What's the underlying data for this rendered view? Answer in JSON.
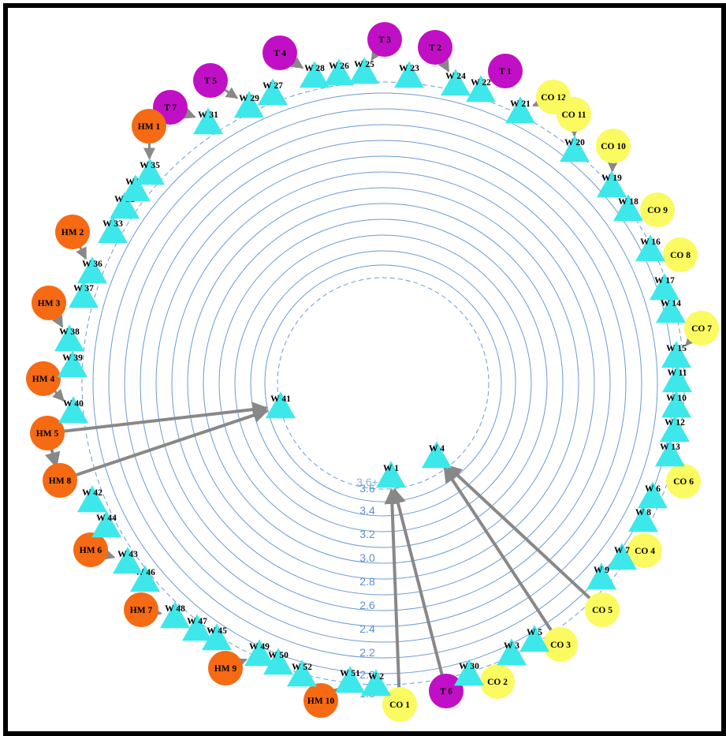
{
  "colors": {
    "ring": "#6b9bd1",
    "edge": "#888888",
    "warehouse": "#3ee8ea",
    "hm": "#f56a12",
    "t": "#c10fc5",
    "co": "#fbfa60",
    "label": "#000000"
  },
  "rings": {
    "labels": [
      "3.6",
      "3.4",
      "3.2",
      "3.0",
      "2.8",
      "2.6",
      "2.4",
      "2.2",
      "2.0",
      "1.8"
    ],
    "partial_labels": [
      "3.6+",
      "2.0",
      "1.8"
    ]
  },
  "nodes": [
    {
      "id": "T3",
      "label": "T 3",
      "type": "t",
      "shape": "circle"
    },
    {
      "id": "T2",
      "label": "T 2",
      "type": "t",
      "shape": "circle"
    },
    {
      "id": "T4",
      "label": "T 4",
      "type": "t",
      "shape": "circle"
    },
    {
      "id": "T1",
      "label": "T 1",
      "type": "t",
      "shape": "circle"
    },
    {
      "id": "T5",
      "label": "T 5",
      "type": "t",
      "shape": "circle"
    },
    {
      "id": "T7",
      "label": "T 7",
      "type": "t",
      "shape": "circle"
    },
    {
      "id": "T6",
      "label": "T 6",
      "type": "t",
      "shape": "circle"
    },
    {
      "id": "HM1",
      "label": "HM 1",
      "type": "hm",
      "shape": "circle"
    },
    {
      "id": "HM2",
      "label": "HM 2",
      "type": "hm",
      "shape": "circle"
    },
    {
      "id": "HM3",
      "label": "HM 3",
      "type": "hm",
      "shape": "circle"
    },
    {
      "id": "HM4",
      "label": "HM 4",
      "type": "hm",
      "shape": "circle"
    },
    {
      "id": "HM5",
      "label": "HM 5",
      "type": "hm",
      "shape": "circle"
    },
    {
      "id": "HM8",
      "label": "HM 8",
      "type": "hm",
      "shape": "circle"
    },
    {
      "id": "HM6",
      "label": "HM 6",
      "type": "hm",
      "shape": "circle"
    },
    {
      "id": "HM7",
      "label": "HM 7",
      "type": "hm",
      "shape": "circle"
    },
    {
      "id": "HM9",
      "label": "HM 9",
      "type": "hm",
      "shape": "circle"
    },
    {
      "id": "HM10",
      "label": "HM 10",
      "type": "hm",
      "shape": "circle"
    },
    {
      "id": "CO12",
      "label": "CO 12",
      "type": "co",
      "shape": "circle"
    },
    {
      "id": "CO11",
      "label": "CO 11",
      "type": "co",
      "shape": "circle"
    },
    {
      "id": "CO10",
      "label": "CO 10",
      "type": "co",
      "shape": "circle"
    },
    {
      "id": "CO9",
      "label": "CO 9",
      "type": "co",
      "shape": "circle"
    },
    {
      "id": "CO8",
      "label": "CO 8",
      "type": "co",
      "shape": "circle"
    },
    {
      "id": "CO7",
      "label": "CO 7",
      "type": "co",
      "shape": "circle"
    },
    {
      "id": "CO6",
      "label": "CO 6",
      "type": "co",
      "shape": "circle"
    },
    {
      "id": "CO4",
      "label": "CO 4",
      "type": "co",
      "shape": "circle"
    },
    {
      "id": "CO5",
      "label": "CO 5",
      "type": "co",
      "shape": "circle"
    },
    {
      "id": "CO3",
      "label": "CO 3",
      "type": "co",
      "shape": "circle"
    },
    {
      "id": "CO2",
      "label": "CO 2",
      "type": "co",
      "shape": "circle"
    },
    {
      "id": "CO1",
      "label": "CO 1",
      "type": "co",
      "shape": "circle"
    },
    {
      "id": "W26",
      "label": "W 26",
      "type": "w",
      "shape": "triangle"
    },
    {
      "id": "W28",
      "label": "W 28",
      "type": "w",
      "shape": "triangle"
    },
    {
      "id": "W25",
      "label": "W 25",
      "type": "w",
      "shape": "triangle"
    },
    {
      "id": "W23",
      "label": "W 23",
      "type": "w",
      "shape": "triangle"
    },
    {
      "id": "W24",
      "label": "W 24",
      "type": "w",
      "shape": "triangle"
    },
    {
      "id": "W22",
      "label": "W 22",
      "type": "w",
      "shape": "triangle"
    },
    {
      "id": "W27",
      "label": "W 27",
      "type": "w",
      "shape": "triangle"
    },
    {
      "id": "W29",
      "label": "W 29",
      "type": "w",
      "shape": "triangle"
    },
    {
      "id": "W31",
      "label": "W 31",
      "type": "w",
      "shape": "triangle"
    },
    {
      "id": "W21",
      "label": "W 21",
      "type": "w",
      "shape": "triangle"
    },
    {
      "id": "W20",
      "label": "W 20",
      "type": "w",
      "shape": "triangle"
    },
    {
      "id": "W19",
      "label": "W 19",
      "type": "w",
      "shape": "triangle"
    },
    {
      "id": "W18",
      "label": "W 18",
      "type": "w",
      "shape": "triangle"
    },
    {
      "id": "W16",
      "label": "W 16",
      "type": "w",
      "shape": "triangle"
    },
    {
      "id": "W17",
      "label": "W 17",
      "type": "w",
      "shape": "triangle"
    },
    {
      "id": "W14",
      "label": "W 14",
      "type": "w",
      "shape": "triangle"
    },
    {
      "id": "W15",
      "label": "W 15",
      "type": "w",
      "shape": "triangle"
    },
    {
      "id": "W11",
      "label": "W 11",
      "type": "w",
      "shape": "triangle"
    },
    {
      "id": "W10",
      "label": "W 10",
      "type": "w",
      "shape": "triangle"
    },
    {
      "id": "W12",
      "label": "W 12",
      "type": "w",
      "shape": "triangle"
    },
    {
      "id": "W13",
      "label": "W 13",
      "type": "w",
      "shape": "triangle"
    },
    {
      "id": "W6",
      "label": "W 6",
      "type": "w",
      "shape": "triangle"
    },
    {
      "id": "W8",
      "label": "W 8",
      "type": "w",
      "shape": "triangle"
    },
    {
      "id": "W7",
      "label": "W 7",
      "type": "w",
      "shape": "triangle"
    },
    {
      "id": "W9",
      "label": "W 9",
      "type": "w",
      "shape": "triangle"
    },
    {
      "id": "W5",
      "label": "W 5",
      "type": "w",
      "shape": "triangle"
    },
    {
      "id": "W3",
      "label": "W 3",
      "type": "w",
      "shape": "triangle"
    },
    {
      "id": "W30",
      "label": "W 30",
      "type": "w",
      "shape": "triangle"
    },
    {
      "id": "W2",
      "label": "W 2",
      "type": "w",
      "shape": "triangle"
    },
    {
      "id": "W51",
      "label": "W 51",
      "type": "w",
      "shape": "triangle"
    },
    {
      "id": "W52",
      "label": "W 52",
      "type": "w",
      "shape": "triangle"
    },
    {
      "id": "W50",
      "label": "W 50",
      "type": "w",
      "shape": "triangle"
    },
    {
      "id": "W49",
      "label": "W 49",
      "type": "w",
      "shape": "triangle"
    },
    {
      "id": "W45",
      "label": "W 45",
      "type": "w",
      "shape": "triangle"
    },
    {
      "id": "W47",
      "label": "W 47",
      "type": "w",
      "shape": "triangle"
    },
    {
      "id": "W48",
      "label": "W 48",
      "type": "w",
      "shape": "triangle"
    },
    {
      "id": "W46",
      "label": "W 46",
      "type": "w",
      "shape": "triangle"
    },
    {
      "id": "W43",
      "label": "W 43",
      "type": "w",
      "shape": "triangle"
    },
    {
      "id": "W44",
      "label": "W 44",
      "type": "w",
      "shape": "triangle"
    },
    {
      "id": "W42",
      "label": "W 42",
      "type": "w",
      "shape": "triangle"
    },
    {
      "id": "W40",
      "label": "W 40",
      "type": "w",
      "shape": "triangle"
    },
    {
      "id": "W39",
      "label": "W 39",
      "type": "w",
      "shape": "triangle"
    },
    {
      "id": "W38",
      "label": "W 38",
      "type": "w",
      "shape": "triangle"
    },
    {
      "id": "W37",
      "label": "W 37",
      "type": "w",
      "shape": "triangle"
    },
    {
      "id": "W36",
      "label": "W 36",
      "type": "w",
      "shape": "triangle"
    },
    {
      "id": "W33",
      "label": "W 33",
      "type": "w",
      "shape": "triangle"
    },
    {
      "id": "W32",
      "label": "W 32",
      "type": "w",
      "shape": "triangle"
    },
    {
      "id": "W34",
      "label": "W 34",
      "type": "w",
      "shape": "triangle"
    },
    {
      "id": "W35",
      "label": "W 35",
      "type": "w",
      "shape": "triangle"
    },
    {
      "id": "W41",
      "label": "W 41",
      "type": "w",
      "shape": "triangle"
    },
    {
      "id": "W1",
      "label": "W 1",
      "type": "w",
      "shape": "triangle"
    },
    {
      "id": "W4",
      "label": "W 4",
      "type": "w",
      "shape": "triangle"
    }
  ],
  "edges": [
    {
      "from": "HM5",
      "to": "W41",
      "style": "thick"
    },
    {
      "from": "HM8",
      "to": "W41",
      "style": "thick"
    },
    {
      "from": "CO1",
      "to": "W1",
      "style": "thick"
    },
    {
      "from": "T6",
      "to": "W1",
      "style": "thick"
    },
    {
      "from": "CO3",
      "to": "W4",
      "style": "thick"
    },
    {
      "from": "CO5",
      "to": "W4",
      "style": "thick"
    },
    {
      "from": "HM5",
      "to": "HM8",
      "style": "thick"
    },
    {
      "from": "T3",
      "to": "W25",
      "style": "short"
    },
    {
      "from": "T2",
      "to": "W24",
      "style": "short"
    },
    {
      "from": "T4",
      "to": "W28",
      "style": "short"
    },
    {
      "from": "T1",
      "to": "W22",
      "style": "short"
    },
    {
      "from": "T5",
      "to": "W29",
      "style": "short"
    },
    {
      "from": "T7",
      "to": "W31",
      "style": "short"
    },
    {
      "from": "HM1",
      "to": "W35",
      "style": "short"
    },
    {
      "from": "HM2",
      "to": "W36",
      "style": "short"
    },
    {
      "from": "HM3",
      "to": "W38",
      "style": "short"
    },
    {
      "from": "HM4",
      "to": "W40",
      "style": "short"
    },
    {
      "from": "HM6",
      "to": "W43",
      "style": "short"
    },
    {
      "from": "HM7",
      "to": "W48",
      "style": "short"
    },
    {
      "from": "HM9",
      "to": "W49",
      "style": "short"
    },
    {
      "from": "HM10",
      "to": "W51",
      "style": "short"
    },
    {
      "from": "CO12",
      "to": "W21",
      "style": "short"
    },
    {
      "from": "CO11",
      "to": "W20",
      "style": "short"
    },
    {
      "from": "CO10",
      "to": "W19",
      "style": "short"
    },
    {
      "from": "CO9",
      "to": "W18",
      "style": "short"
    },
    {
      "from": "CO8",
      "to": "W16",
      "style": "short"
    },
    {
      "from": "CO7",
      "to": "W15",
      "style": "short"
    },
    {
      "from": "CO6",
      "to": "W13",
      "style": "short"
    },
    {
      "from": "CO4",
      "to": "W7",
      "style": "short"
    },
    {
      "from": "CO2",
      "to": "W30",
      "style": "short"
    }
  ]
}
